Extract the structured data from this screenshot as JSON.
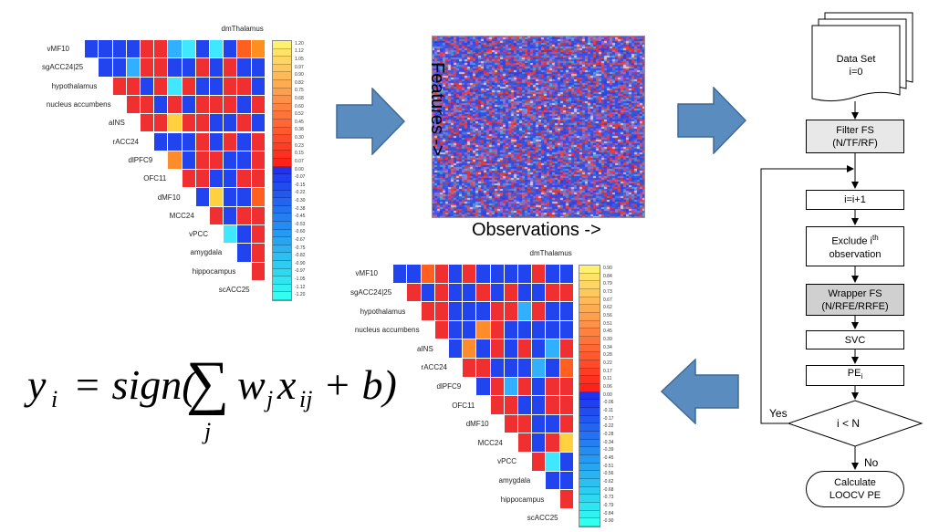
{
  "matrix_labels": [
    "dmThalamus",
    "vMF10",
    "sgACC24|25",
    "hypothalamus",
    "nucleus accumbens",
    "aINS",
    "rACC24",
    "dlPFC9",
    "OFC11",
    "dMF10",
    "MCC24",
    "vPCC",
    "amygdala",
    "hippocampus",
    "scACC25"
  ],
  "colorbar_top": [
    "1.20",
    "1.12",
    "1.05",
    "0.97",
    "0.90",
    "0.82",
    "0.75",
    "0.68",
    "0.60",
    "0.52",
    "0.45",
    "0.38",
    "0.30",
    "0.23",
    "0.15",
    "0.07",
    "0.00",
    "-0.07",
    "-0.15",
    "-0.22",
    "-0.30",
    "-0.38",
    "-0.45",
    "-0.53",
    "-0.60",
    "-0.67",
    "-0.75",
    "-0.82",
    "-0.90",
    "-0.97",
    "-1.05",
    "-1.12",
    "-1.20"
  ],
  "colorbar_bottom": [
    "0.90",
    "0.84",
    "0.79",
    "0.73",
    "0.67",
    "0.62",
    "0.56",
    "0.51",
    "0.45",
    "0.39",
    "0.34",
    "0.28",
    "0.22",
    "0.17",
    "0.11",
    "0.06",
    "0.00",
    "-0.06",
    "-0.11",
    "-0.17",
    "-0.22",
    "-0.28",
    "-0.34",
    "-0.39",
    "-0.45",
    "-0.51",
    "-0.56",
    "-0.62",
    "-0.68",
    "-0.73",
    "-0.79",
    "-0.84",
    "-0.90"
  ],
  "features_label": "Features ->",
  "observations_label": "Observations ->",
  "flowchart": {
    "data_set": "Data Set",
    "init": "i=0",
    "filter_fs": "Filter FS",
    "filter_fs_opts": "(N/TF/RF)",
    "increment": "i=i+1",
    "exclude_line1": "Exclude i",
    "exclude_sup": "th",
    "exclude_line2": "observation",
    "wrapper_fs": "Wrapper FS",
    "wrapper_fs_opts": "(N/RFE/RRFE)",
    "svc": "SVC",
    "pe": "PE",
    "pe_sub": "i",
    "condition": "i < N",
    "yes": "Yes",
    "no": "No",
    "calc_line1": "Calculate",
    "calc_line2": "LOOCV PE"
  },
  "formula": {
    "lhs": "y",
    "lhs_sub": "i",
    "eq": "= sign(",
    "sum": "∑",
    "sum_sub": "j",
    "w": "w",
    "w_sub": "j",
    "x": "x",
    "x_sub": "ij",
    "tail": "+ b)"
  },
  "colors": {
    "arrow_fill": "#5b8cc0",
    "arrow_stroke": "#3f6a96",
    "red": "#f03030",
    "blue": "#2244ee",
    "gray_box": "#e8e8e8"
  }
}
